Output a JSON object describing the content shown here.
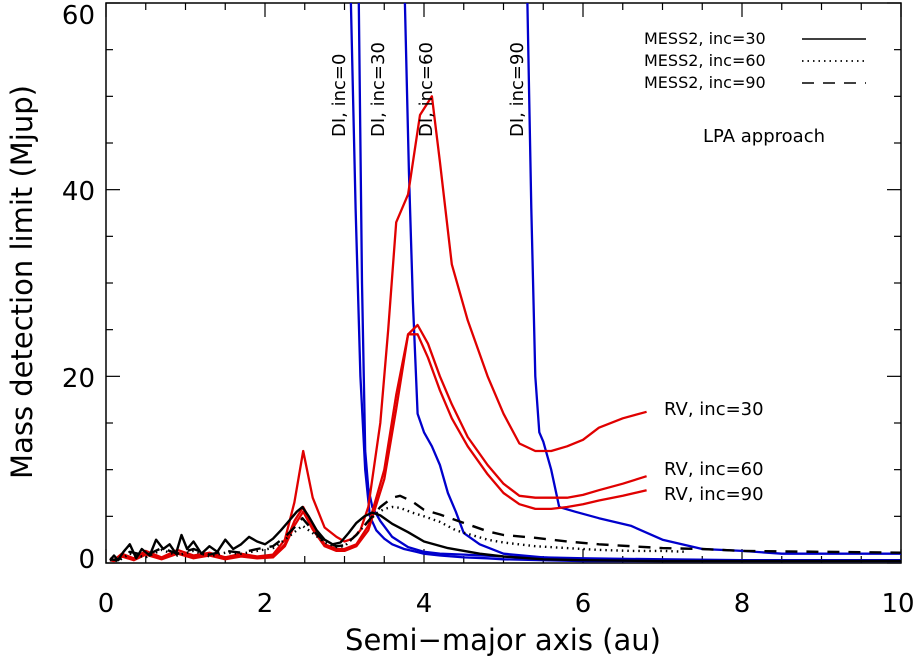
{
  "chart_data": {
    "type": "line",
    "title": "",
    "xlabel": "Semi−major axis (au)",
    "ylabel": "Mass detection limit (Mjup)",
    "xlim": [
      0,
      10
    ],
    "ylim": [
      0,
      60
    ],
    "xticks": [
      0,
      2,
      4,
      6,
      8,
      10
    ],
    "yticks": [
      0,
      20,
      40,
      60
    ],
    "xtick_labels": [
      "0",
      "2",
      "4",
      "6",
      "8",
      "10"
    ],
    "ytick_labels": [
      "0",
      "20",
      "40",
      "60"
    ],
    "grid": false,
    "legend_position": "top-right",
    "legend": [
      {
        "label": "MESS2, inc=30",
        "style": "solid"
      },
      {
        "label": "MESS2, inc=60",
        "style": "dotted"
      },
      {
        "label": "MESS2, inc=90",
        "style": "dashed"
      }
    ],
    "annotations": {
      "method_note": "LPA approach",
      "di_labels": [
        "DI, inc=0",
        "DI, inc=30",
        "DI, inc=60",
        "DI, inc=90"
      ],
      "rv_labels": [
        "RV, inc=30",
        "RV, inc=60",
        "RV, inc=90"
      ]
    },
    "colors": {
      "di": "#0000cc",
      "rv": "#e00000",
      "mess": "#000000"
    },
    "series": [
      {
        "name": "DI, inc=0",
        "group": "di",
        "style": "solid",
        "x": [
          3.08,
          3.14,
          3.2,
          3.26,
          3.32,
          3.4,
          3.5,
          3.6,
          3.75,
          3.9,
          4.0,
          4.2,
          4.5,
          4.8,
          5.0,
          5.5,
          6.0,
          7.0,
          8.0,
          9.0,
          10.0
        ],
        "y": [
          60,
          38,
          20,
          10,
          5.0,
          3.5,
          2.6,
          2.0,
          1.5,
          1.2,
          1.0,
          0.8,
          0.6,
          0.5,
          0.4,
          0.3,
          0.2,
          0.2,
          0.2,
          0.2,
          0.2
        ]
      },
      {
        "name": "DI, inc=30",
        "group": "di",
        "style": "solid",
        "x": [
          3.18,
          3.22,
          3.26,
          3.3,
          3.35,
          3.45,
          3.6,
          3.8,
          4.0,
          4.2,
          4.5,
          5.0,
          5.5,
          6.0,
          7.0,
          8.0,
          9.0,
          10.0
        ],
        "y": [
          60,
          30,
          12,
          8,
          6,
          4.5,
          2.8,
          1.7,
          1.2,
          1.0,
          0.9,
          0.7,
          0.6,
          0.5,
          0.4,
          0.3,
          0.3,
          0.3
        ]
      },
      {
        "name": "DI, inc=60",
        "group": "di",
        "style": "solid",
        "x": [
          3.76,
          3.81,
          3.86,
          3.92,
          4.0,
          4.1,
          4.2,
          4.3,
          4.4,
          4.5,
          4.7,
          5.0,
          5.5,
          6.0,
          6.5,
          7.0,
          8.0,
          9.0,
          10.0
        ],
        "y": [
          60,
          42,
          28,
          16,
          14,
          12.5,
          10.5,
          7.5,
          5.5,
          3.2,
          2.0,
          1.0,
          0.6,
          0.4,
          0.3,
          0.3,
          0.3,
          0.3,
          0.3
        ]
      },
      {
        "name": "DI, inc=90",
        "group": "di",
        "style": "solid",
        "x": [
          5.3,
          5.35,
          5.4,
          5.45,
          5.5,
          5.6,
          5.7,
          5.9,
          6.2,
          6.6,
          7.0,
          7.5,
          8.0,
          8.5,
          9.0,
          10.0
        ],
        "y": [
          60,
          38,
          20,
          14,
          13,
          10,
          6,
          5.5,
          4.8,
          4.0,
          2.5,
          1.5,
          1.3,
          1.0,
          1.0,
          1.0
        ]
      },
      {
        "name": "RV, inc=30",
        "group": "rv",
        "style": "solid",
        "x": [
          0.05,
          0.1,
          0.2,
          0.35,
          0.5,
          0.7,
          0.9,
          1.1,
          1.3,
          1.5,
          1.7,
          1.9,
          2.1,
          2.25,
          2.37,
          2.48,
          2.6,
          2.75,
          2.9,
          3.0,
          3.1,
          3.2,
          3.3,
          3.45,
          3.55,
          3.65,
          3.8,
          3.95,
          4.1,
          4.2,
          4.35,
          4.55,
          4.8,
          5.0,
          5.2,
          5.4,
          5.6,
          5.8,
          6.0,
          6.2,
          6.5,
          6.8
        ],
        "y": [
          0.5,
          0.3,
          1.0,
          0.5,
          1.3,
          0.6,
          1.4,
          0.8,
          1.1,
          0.6,
          1.0,
          0.7,
          0.9,
          2.5,
          6.5,
          12.0,
          7.0,
          3.8,
          2.8,
          2.3,
          2.6,
          3.5,
          6.0,
          15.0,
          25.0,
          36.5,
          39.5,
          48.0,
          50.0,
          43.0,
          32.0,
          26.0,
          20.0,
          16.0,
          12.8,
          12.0,
          12.0,
          12.5,
          13.2,
          14.5,
          15.5,
          16.2
        ]
      },
      {
        "name": "RV, inc=60",
        "group": "rv",
        "style": "solid",
        "x": [
          0.05,
          0.1,
          0.2,
          0.35,
          0.5,
          0.7,
          0.9,
          1.1,
          1.3,
          1.5,
          1.7,
          1.9,
          2.1,
          2.25,
          2.37,
          2.48,
          2.6,
          2.75,
          2.9,
          3.0,
          3.15,
          3.3,
          3.5,
          3.65,
          3.8,
          3.92,
          4.05,
          4.2,
          4.35,
          4.55,
          4.8,
          5.0,
          5.2,
          5.4,
          5.6,
          5.8,
          6.0,
          6.2,
          6.5,
          6.8
        ],
        "y": [
          0.4,
          0.3,
          0.8,
          0.4,
          1.0,
          0.5,
          1.1,
          0.6,
          0.9,
          0.5,
          0.8,
          0.6,
          0.7,
          2.0,
          4.5,
          6.0,
          4.0,
          2.0,
          1.5,
          1.5,
          2.0,
          4.0,
          10.0,
          18.0,
          24.5,
          25.5,
          23.5,
          20.0,
          17.0,
          13.5,
          10.5,
          8.5,
          7.2,
          7.0,
          7.0,
          7.0,
          7.3,
          7.8,
          8.5,
          9.3
        ]
      },
      {
        "name": "RV, inc=90",
        "group": "rv",
        "style": "solid",
        "x": [
          0.05,
          0.1,
          0.2,
          0.35,
          0.5,
          0.7,
          0.9,
          1.1,
          1.3,
          1.5,
          1.7,
          1.9,
          2.1,
          2.25,
          2.37,
          2.48,
          2.6,
          2.75,
          2.9,
          3.0,
          3.15,
          3.3,
          3.5,
          3.65,
          3.8,
          3.92,
          4.05,
          4.2,
          4.35,
          4.55,
          4.8,
          5.0,
          5.2,
          5.4,
          5.6,
          5.8,
          6.0,
          6.2,
          6.5,
          6.8
        ],
        "y": [
          0.3,
          0.2,
          0.7,
          0.3,
          0.9,
          0.4,
          1.0,
          0.5,
          0.8,
          0.4,
          0.7,
          0.5,
          0.6,
          1.8,
          4.0,
          5.5,
          3.6,
          1.8,
          1.3,
          1.3,
          1.8,
          3.5,
          9.0,
          16.5,
          24.5,
          24.5,
          22.0,
          18.5,
          15.5,
          12.5,
          9.5,
          7.5,
          6.3,
          5.8,
          5.8,
          6.0,
          6.3,
          6.7,
          7.2,
          7.8
        ]
      },
      {
        "name": "MESS2, inc=30",
        "group": "mess",
        "style": "solid",
        "x": [
          0.05,
          0.1,
          0.15,
          0.22,
          0.3,
          0.38,
          0.45,
          0.55,
          0.63,
          0.72,
          0.8,
          0.88,
          0.95,
          1.02,
          1.1,
          1.2,
          1.3,
          1.4,
          1.5,
          1.6,
          1.7,
          1.8,
          1.9,
          2.0,
          2.1,
          2.2,
          2.3,
          2.4,
          2.47,
          2.55,
          2.65,
          2.75,
          2.85,
          2.95,
          3.05,
          3.15,
          3.25,
          3.35,
          3.45,
          3.6,
          3.8,
          4.0,
          4.3,
          4.7,
          5.0,
          5.5,
          6.0,
          7.0,
          8.0,
          9.0,
          10.0
        ],
        "y": [
          0.3,
          0.8,
          0.3,
          1.2,
          2.0,
          0.5,
          1.5,
          0.8,
          2.5,
          1.5,
          2.0,
          1.0,
          3.0,
          1.5,
          2.3,
          1.0,
          1.8,
          1.2,
          2.5,
          1.5,
          2.0,
          2.8,
          2.3,
          2.0,
          2.6,
          3.5,
          4.5,
          5.5,
          6.0,
          5.0,
          3.5,
          2.5,
          2.0,
          2.2,
          3.2,
          4.3,
          5.0,
          5.4,
          5.1,
          4.2,
          3.3,
          2.3,
          1.6,
          1.0,
          0.7,
          0.4,
          0.3,
          0.2,
          0.2,
          0.2,
          0.2
        ]
      },
      {
        "name": "MESS2, inc=60",
        "group": "mess",
        "style": "dotted",
        "x": [
          0.05,
          0.15,
          0.3,
          0.5,
          0.7,
          0.9,
          1.1,
          1.3,
          1.5,
          1.7,
          1.9,
          2.1,
          2.25,
          2.37,
          2.47,
          2.6,
          2.75,
          2.9,
          3.0,
          3.1,
          3.25,
          3.4,
          3.5,
          3.6,
          3.7,
          3.85,
          4.0,
          4.2,
          4.4,
          4.6,
          4.8,
          5.0,
          5.4,
          5.8,
          6.2,
          6.6,
          7.0,
          7.3
        ],
        "y": [
          0.3,
          0.2,
          1.0,
          0.6,
          1.4,
          0.8,
          1.3,
          0.7,
          1.1,
          1.0,
          1.3,
          1.6,
          2.5,
          3.3,
          4.0,
          3.2,
          2.2,
          1.7,
          1.8,
          2.6,
          4.0,
          5.3,
          5.8,
          6.0,
          5.9,
          5.4,
          5.0,
          4.4,
          3.5,
          3.0,
          2.5,
          2.2,
          1.8,
          1.6,
          1.4,
          1.3,
          1.3,
          1.2
        ]
      },
      {
        "name": "MESS2, inc=90",
        "group": "mess",
        "style": "dashed",
        "x": [
          0.05,
          0.15,
          0.3,
          0.5,
          0.7,
          0.9,
          1.1,
          1.3,
          1.5,
          1.7,
          1.9,
          2.1,
          2.25,
          2.37,
          2.47,
          2.6,
          2.75,
          2.9,
          3.0,
          3.15,
          3.3,
          3.45,
          3.6,
          3.7,
          3.85,
          4.0,
          4.2,
          4.4,
          4.6,
          4.8,
          5.0,
          5.4,
          5.8,
          6.2,
          6.6,
          7.0,
          7.5,
          8.0,
          9.0,
          10.0
        ],
        "y": [
          0.4,
          0.3,
          1.2,
          0.8,
          1.6,
          1.0,
          1.5,
          0.9,
          1.3,
          1.1,
          1.5,
          1.8,
          2.8,
          3.8,
          4.8,
          3.5,
          2.3,
          1.8,
          1.9,
          3.0,
          4.5,
          6.0,
          7.0,
          7.2,
          6.6,
          5.7,
          5.2,
          4.6,
          4.0,
          3.4,
          3.0,
          2.7,
          2.3,
          2.0,
          1.8,
          1.6,
          1.5,
          1.3,
          1.2,
          1.1
        ]
      }
    ]
  }
}
